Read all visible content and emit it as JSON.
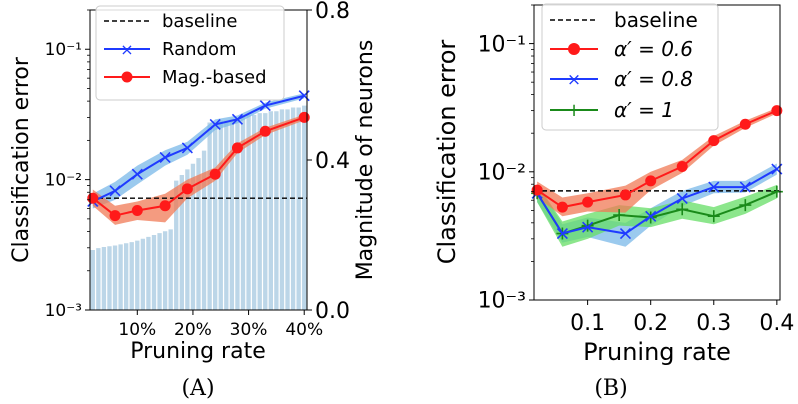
{
  "chart_data": [
    {
      "type": "line",
      "panel": "A",
      "caption": "(A)",
      "xlabel": "Pruning rate",
      "ylabel": "Classification error",
      "y2label": "Magnitude of neurons",
      "yscale": "log",
      "ylim": [
        0.001,
        0.2
      ],
      "y2lim": [
        0.0,
        0.8
      ],
      "xlim": [
        0.015,
        0.405
      ],
      "xticks": [
        0.1,
        0.2,
        0.3,
        0.4
      ],
      "xticklabels": [
        "10%",
        "20%",
        "30%",
        "40%"
      ],
      "yticks": [
        0.001,
        0.01,
        0.1
      ],
      "yticklabels": [
        "10⁻³",
        "10⁻²",
        "10⁻¹"
      ],
      "y2ticks": [
        0.0,
        0.4,
        0.8
      ],
      "y2ticklabels": [
        "0.0",
        "0.4",
        "0.8"
      ],
      "legend_position": "top-left",
      "grid": false,
      "colors": {
        "baseline": "#000000",
        "random": "#1f3bff",
        "magnitude": "#ff1a1a",
        "random_band": "#7ab8e8",
        "magnitude_band": "#f07a56",
        "bars": "#bcd6e8"
      },
      "baseline": {
        "name": "baseline",
        "value": 0.0072
      },
      "series": [
        {
          "name": "Random",
          "marker": "x",
          "x": [
            0.02,
            0.06,
            0.1,
            0.15,
            0.19,
            0.24,
            0.28,
            0.33,
            0.4
          ],
          "values": [
            0.0068,
            0.0082,
            0.011,
            0.0148,
            0.0175,
            0.0265,
            0.029,
            0.037,
            0.044
          ],
          "band_low": [
            0.006,
            0.007,
            0.0092,
            0.0128,
            0.0155,
            0.024,
            0.027,
            0.035,
            0.042
          ],
          "band_high": [
            0.0078,
            0.0096,
            0.0128,
            0.0168,
            0.0195,
            0.029,
            0.031,
            0.039,
            0.046
          ]
        },
        {
          "name": "Mag.-based",
          "marker": "o",
          "x": [
            0.02,
            0.06,
            0.1,
            0.15,
            0.19,
            0.24,
            0.28,
            0.33,
            0.4
          ],
          "values": [
            0.0072,
            0.0053,
            0.0058,
            0.0063,
            0.0085,
            0.011,
            0.0175,
            0.0235,
            0.03
          ],
          "band_low": [
            0.0063,
            0.0045,
            0.0049,
            0.0047,
            0.0072,
            0.0098,
            0.016,
            0.022,
            0.0285
          ],
          "band_high": [
            0.0084,
            0.0063,
            0.0068,
            0.0078,
            0.01,
            0.0124,
            0.019,
            0.025,
            0.0315
          ]
        }
      ],
      "bars": {
        "axis": "y2",
        "x": [
          0.02,
          0.03,
          0.04,
          0.05,
          0.06,
          0.07,
          0.08,
          0.09,
          0.1,
          0.11,
          0.12,
          0.13,
          0.14,
          0.15,
          0.16,
          0.17,
          0.18,
          0.19,
          0.2,
          0.21,
          0.22,
          0.23,
          0.24,
          0.25,
          0.26,
          0.27,
          0.28,
          0.29,
          0.3,
          0.31,
          0.32,
          0.33,
          0.34,
          0.35,
          0.36,
          0.37,
          0.38,
          0.39,
          0.4
        ],
        "values": [
          0.16,
          0.165,
          0.168,
          0.17,
          0.172,
          0.175,
          0.178,
          0.181,
          0.185,
          0.19,
          0.195,
          0.2,
          0.205,
          0.21,
          0.215,
          0.345,
          0.36,
          0.375,
          0.39,
          0.405,
          0.425,
          0.5,
          0.5,
          0.505,
          0.505,
          0.51,
          0.51,
          0.515,
          0.52,
          0.52,
          0.525,
          0.525,
          0.53,
          0.53,
          0.535,
          0.535,
          0.54,
          0.54,
          0.545
        ]
      }
    },
    {
      "type": "line",
      "panel": "B",
      "caption": "(B)",
      "xlabel": "Pruning rate",
      "ylabel": "Classification error",
      "yscale": "log",
      "ylim": [
        0.001,
        0.2
      ],
      "xlim": [
        0.015,
        0.405
      ],
      "xticks": [
        0.1,
        0.2,
        0.3,
        0.4
      ],
      "xticklabels": [
        "0.1",
        "0.2",
        "0.3",
        "0.4"
      ],
      "yticks": [
        0.001,
        0.01,
        0.1
      ],
      "yticklabels": [
        "10⁻³",
        "10⁻²",
        "10⁻¹"
      ],
      "legend_position": "top-left",
      "grid": false,
      "colors": {
        "baseline": "#000000",
        "a06": "#ff1a1a",
        "a08": "#1f3bff",
        "a1": "#1a8a1a",
        "a06_band": "#f07a56",
        "a08_band": "#7ab8e8",
        "a1_band": "#66dd66"
      },
      "baseline": {
        "name": "baseline",
        "value": 0.0071
      },
      "series": [
        {
          "name": "α′ = 0.6",
          "marker": "o",
          "x": [
            0.02,
            0.06,
            0.1,
            0.16,
            0.2,
            0.25,
            0.3,
            0.35,
            0.4
          ],
          "values": [
            0.0072,
            0.0053,
            0.0058,
            0.0066,
            0.0085,
            0.011,
            0.0175,
            0.0235,
            0.03
          ],
          "band_low": [
            0.0063,
            0.0045,
            0.0049,
            0.0048,
            0.0072,
            0.0098,
            0.016,
            0.022,
            0.0285
          ],
          "band_high": [
            0.0084,
            0.0063,
            0.0068,
            0.0078,
            0.01,
            0.0124,
            0.019,
            0.025,
            0.0315
          ]
        },
        {
          "name": "α′ = 0.8",
          "marker": "x",
          "x": [
            0.02,
            0.06,
            0.1,
            0.16,
            0.2,
            0.25,
            0.3,
            0.35,
            0.4
          ],
          "values": [
            0.0068,
            0.0033,
            0.0037,
            0.0033,
            0.0045,
            0.0062,
            0.0076,
            0.0076,
            0.0105
          ],
          "band_low": [
            0.0058,
            0.0028,
            0.0031,
            0.0026,
            0.0038,
            0.0054,
            0.0068,
            0.0069,
            0.0095
          ],
          "band_high": [
            0.008,
            0.0039,
            0.0044,
            0.004,
            0.0052,
            0.0071,
            0.0085,
            0.0085,
            0.0116
          ]
        },
        {
          "name": "α′ = 1",
          "marker": "+",
          "x": [
            0.02,
            0.06,
            0.1,
            0.15,
            0.2,
            0.25,
            0.3,
            0.35,
            0.4
          ],
          "values": [
            0.0068,
            0.0033,
            0.0038,
            0.0046,
            0.0044,
            0.0051,
            0.0045,
            0.0055,
            0.007
          ],
          "band_low": [
            0.0058,
            0.0026,
            0.003,
            0.0038,
            0.0037,
            0.0043,
            0.0039,
            0.0047,
            0.0062
          ],
          "band_high": [
            0.008,
            0.0041,
            0.0047,
            0.0055,
            0.0052,
            0.006,
            0.0053,
            0.0064,
            0.0079
          ]
        }
      ]
    }
  ]
}
